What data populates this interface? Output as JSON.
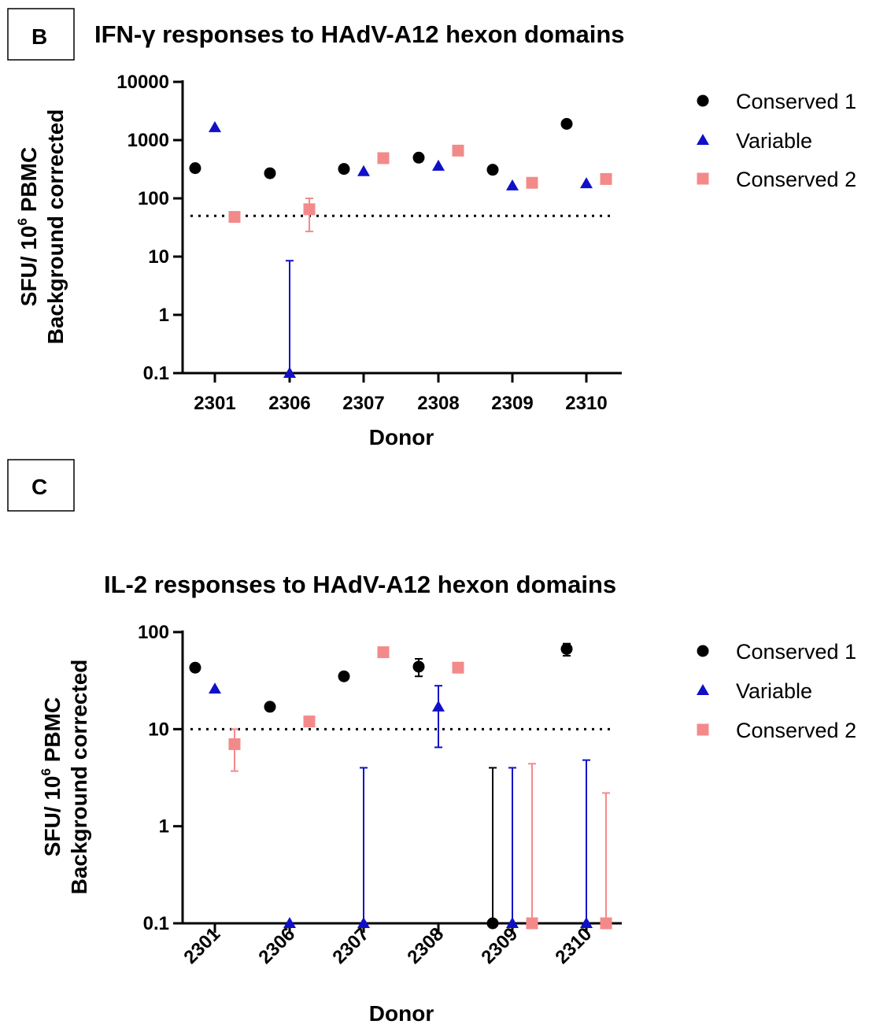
{
  "panels": [
    {
      "label": "B"
    },
    {
      "label": "C"
    }
  ],
  "colors": {
    "conserved1": "#000000",
    "variable": "#1010c8",
    "conserved2": "#f38a8a",
    "threshold": "#000000"
  },
  "chart_data": [
    {
      "type": "scatter",
      "title": "IFN-γ responses to HAdV-A12 hexon domains",
      "xlabel": "Donor",
      "ylabel_line1": "SFU/ 10",
      "ylabel_sup": "6",
      "ylabel_line1_end": " PBMC",
      "ylabel_line2": "Background corrected",
      "yscale": "log",
      "ylim": [
        0.1,
        10000
      ],
      "yticks": [
        0.1,
        1,
        10,
        100,
        1000,
        10000
      ],
      "ytick_labels": [
        "0.1",
        "1",
        "10",
        "100",
        "1000",
        "10000"
      ],
      "categories": [
        "2301",
        "2306",
        "2307",
        "2308",
        "2309",
        "2310"
      ],
      "threshold": 50,
      "legend_position": "right",
      "series": [
        {
          "name": "Conserved 1",
          "marker": "circle",
          "color_key": "conserved1",
          "values": [
            330,
            270,
            320,
            500,
            310,
            1900
          ],
          "err_low": [
            null,
            null,
            null,
            null,
            null,
            null
          ],
          "err_high": [
            null,
            null,
            null,
            null,
            null,
            null
          ]
        },
        {
          "name": "Variable",
          "marker": "triangle",
          "color_key": "variable",
          "values": [
            1650,
            0.1,
            290,
            360,
            165,
            180
          ],
          "err_low": [
            null,
            0.1,
            null,
            null,
            null,
            null
          ],
          "err_high": [
            null,
            8.5,
            null,
            null,
            null,
            null
          ]
        },
        {
          "name": "Conserved 2",
          "marker": "square",
          "color_key": "conserved2",
          "values": [
            48,
            65,
            490,
            660,
            185,
            215
          ],
          "err_low": [
            null,
            27,
            null,
            null,
            null,
            null
          ],
          "err_high": [
            null,
            100,
            null,
            null,
            null,
            null
          ]
        }
      ]
    },
    {
      "type": "scatter",
      "title": "IL-2 responses to HAdV-A12 hexon domains",
      "xlabel": "Donor",
      "ylabel_line1": "SFU/ 10",
      "ylabel_sup": "6",
      "ylabel_line1_end": " PBMC",
      "ylabel_line2": "Background corrected",
      "yscale": "log",
      "ylim": [
        0.1,
        100
      ],
      "yticks": [
        0.1,
        1,
        10,
        100
      ],
      "ytick_labels": [
        "0.1",
        "1",
        "10",
        "100"
      ],
      "categories": [
        "2301",
        "2306",
        "2307",
        "2308",
        "2309",
        "2310"
      ],
      "threshold": 10,
      "legend_position": "right",
      "series": [
        {
          "name": "Conserved 1",
          "marker": "circle",
          "color_key": "conserved1",
          "values": [
            43,
            17,
            35,
            44,
            0.1,
            67
          ],
          "err_low": [
            null,
            null,
            null,
            35,
            0.1,
            57
          ],
          "err_high": [
            null,
            null,
            null,
            53,
            4,
            76
          ]
        },
        {
          "name": "Variable",
          "marker": "triangle",
          "color_key": "variable",
          "values": [
            26,
            0.1,
            0.1,
            17,
            0.1,
            0.1
          ],
          "err_low": [
            null,
            null,
            0.1,
            6.5,
            0.1,
            0.1
          ],
          "err_high": [
            null,
            null,
            4,
            28,
            4,
            4.8
          ]
        },
        {
          "name": "Conserved 2",
          "marker": "square",
          "color_key": "conserved2",
          "values": [
            7,
            12,
            62,
            43,
            0.1,
            0.1
          ],
          "err_low": [
            3.7,
            null,
            null,
            null,
            0.1,
            0.1
          ],
          "err_high": [
            10,
            null,
            null,
            null,
            4.4,
            2.2
          ]
        }
      ]
    }
  ]
}
